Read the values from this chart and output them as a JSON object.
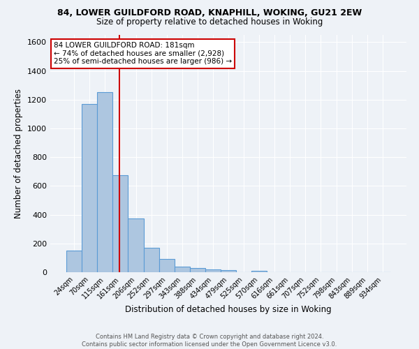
{
  "title_line1": "84, LOWER GUILDFORD ROAD, KNAPHILL, WOKING, GU21 2EW",
  "title_line2": "Size of property relative to detached houses in Woking",
  "xlabel": "Distribution of detached houses by size in Woking",
  "ylabel": "Number of detached properties",
  "footer_line1": "Contains HM Land Registry data © Crown copyright and database right 2024.",
  "footer_line2": "Contains public sector information licensed under the Open Government Licence v3.0.",
  "annotation_line1": "84 LOWER GUILDFORD ROAD: 181sqm",
  "annotation_line2": "← 74% of detached houses are smaller (2,928)",
  "annotation_line3": "25% of semi-detached houses are larger (986) →",
  "bar_labels": [
    "24sqm",
    "70sqm",
    "115sqm",
    "161sqm",
    "206sqm",
    "252sqm",
    "297sqm",
    "343sqm",
    "388sqm",
    "434sqm",
    "479sqm",
    "525sqm",
    "570sqm",
    "616sqm",
    "661sqm",
    "707sqm",
    "752sqm",
    "798sqm",
    "843sqm",
    "889sqm",
    "934sqm"
  ],
  "bar_values": [
    152,
    1170,
    1250,
    675,
    375,
    170,
    90,
    38,
    28,
    18,
    15,
    0,
    12,
    0,
    0,
    0,
    0,
    0,
    0,
    0,
    0
  ],
  "bar_color": "#adc6e0",
  "bar_edge_color": "#5b9bd5",
  "property_line_color": "#cc0000",
  "ylim": [
    0,
    1650
  ],
  "yticks": [
    0,
    200,
    400,
    600,
    800,
    1000,
    1200,
    1400,
    1600
  ],
  "bg_color": "#eef2f7",
  "grid_color": "#ffffff",
  "annotation_box_color": "#ffffff",
  "annotation_box_edge": "#cc0000"
}
